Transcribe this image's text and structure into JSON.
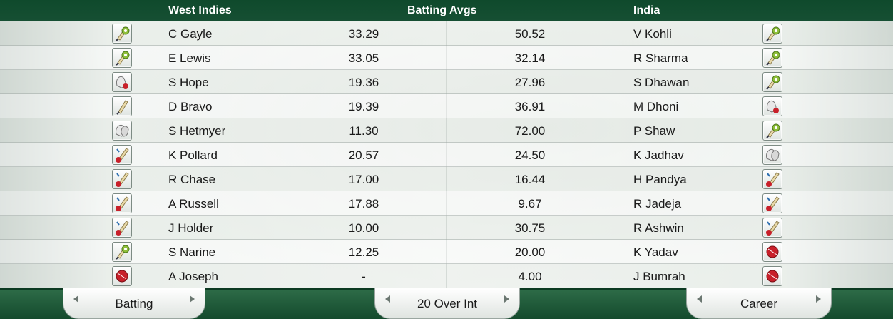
{
  "header": {
    "left_team": "West Indies",
    "middle_title": "Batting Avgs",
    "right_team": "India"
  },
  "rows": [
    {
      "left_icon": "bat-ball-icon",
      "left_name": "C Gayle",
      "left_avg": "33.29",
      "right_avg": "50.52",
      "right_name": "V Kohli",
      "right_icon": "bat-ball-icon"
    },
    {
      "left_icon": "bat-ball-icon",
      "left_name": "E Lewis",
      "left_avg": "33.05",
      "right_avg": "32.14",
      "right_name": "R Sharma",
      "right_icon": "bat-ball-icon"
    },
    {
      "left_icon": "keeper-gloves-icon",
      "left_name": "S Hope",
      "left_avg": "19.36",
      "right_avg": "27.96",
      "right_name": "S Dhawan",
      "right_icon": "bat-ball-icon"
    },
    {
      "left_icon": "bat-icon",
      "left_name": "D Bravo",
      "left_avg": "19.39",
      "right_avg": "36.91",
      "right_name": "M Dhoni",
      "right_icon": "keeper-gloves-icon"
    },
    {
      "left_icon": "gloves-icon",
      "left_name": "S Hetmyer",
      "left_avg": "11.30",
      "right_avg": "72.00",
      "right_name": "P Shaw",
      "right_icon": "bat-ball-icon"
    },
    {
      "left_icon": "allrounder-icon",
      "left_name": "K Pollard",
      "left_avg": "20.57",
      "right_avg": "24.50",
      "right_name": "K Jadhav",
      "right_icon": "gloves-icon"
    },
    {
      "left_icon": "allrounder-icon",
      "left_name": "R Chase",
      "left_avg": "17.00",
      "right_avg": "16.44",
      "right_name": "H Pandya",
      "right_icon": "allrounder-icon"
    },
    {
      "left_icon": "allrounder-icon",
      "left_name": "A Russell",
      "left_avg": "17.88",
      "right_avg": "9.67",
      "right_name": "R Jadeja",
      "right_icon": "allrounder-icon"
    },
    {
      "left_icon": "allrounder-icon",
      "left_name": "J Holder",
      "left_avg": "10.00",
      "right_avg": "30.75",
      "right_name": "R Ashwin",
      "right_icon": "allrounder-icon"
    },
    {
      "left_icon": "bat-ball-icon",
      "left_name": "S Narine",
      "left_avg": "12.25",
      "right_avg": "20.00",
      "right_name": "K Yadav",
      "right_icon": "ball-icon"
    },
    {
      "left_icon": "ball-icon",
      "left_name": "A Joseph",
      "left_avg": "-",
      "right_avg": "4.00",
      "right_name": "J Bumrah",
      "right_icon": "ball-icon"
    }
  ],
  "footer": {
    "stat_type": "Batting",
    "format": "20 Over Int",
    "period": "Career"
  },
  "colors": {
    "header_green": "#0f4a2c",
    "footer_green": "#144a2d",
    "ball_red": "#c8202a",
    "ball_green": "#8fbf3a",
    "bat_tan": "#e9d9a8"
  }
}
